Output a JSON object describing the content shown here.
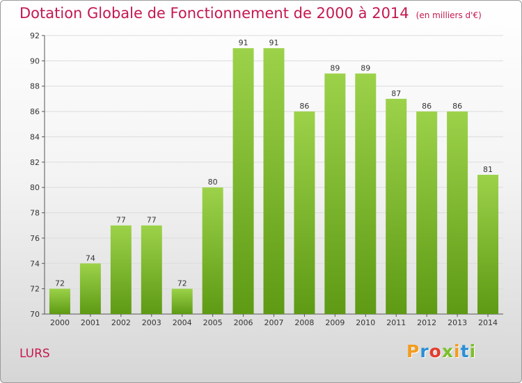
{
  "chart_data": {
    "type": "bar",
    "title": "Dotation Globale de Fonctionnement de 2000 à 2014",
    "subtitle": "(en milliers d'€)",
    "categories": [
      "2000",
      "2001",
      "2002",
      "2003",
      "2004",
      "2005",
      "2006",
      "2007",
      "2008",
      "2009",
      "2010",
      "2011",
      "2012",
      "2013",
      "2014"
    ],
    "values": [
      72,
      74,
      77,
      77,
      72,
      80,
      91,
      91,
      86,
      89,
      89,
      87,
      86,
      86,
      81
    ],
    "xlabel": "",
    "ylabel": "",
    "ylim": [
      70,
      92
    ],
    "yticks": [
      70,
      72,
      74,
      76,
      78,
      80,
      82,
      84,
      86,
      88,
      90,
      92
    ],
    "grid": true,
    "bar_color": "#7fc12e",
    "bar_color_dark": "#5e9a14"
  },
  "footer": {
    "place": "LURS",
    "logo_letters": [
      "P",
      "r",
      "o",
      "x",
      "i",
      "t",
      "i"
    ],
    "logo_colors": [
      "#f39c1f",
      "#2a8fd6",
      "#e33b2c",
      "#7cbf2a",
      "#f39c1f",
      "#2a8fd6",
      "#7cbf2a"
    ]
  }
}
